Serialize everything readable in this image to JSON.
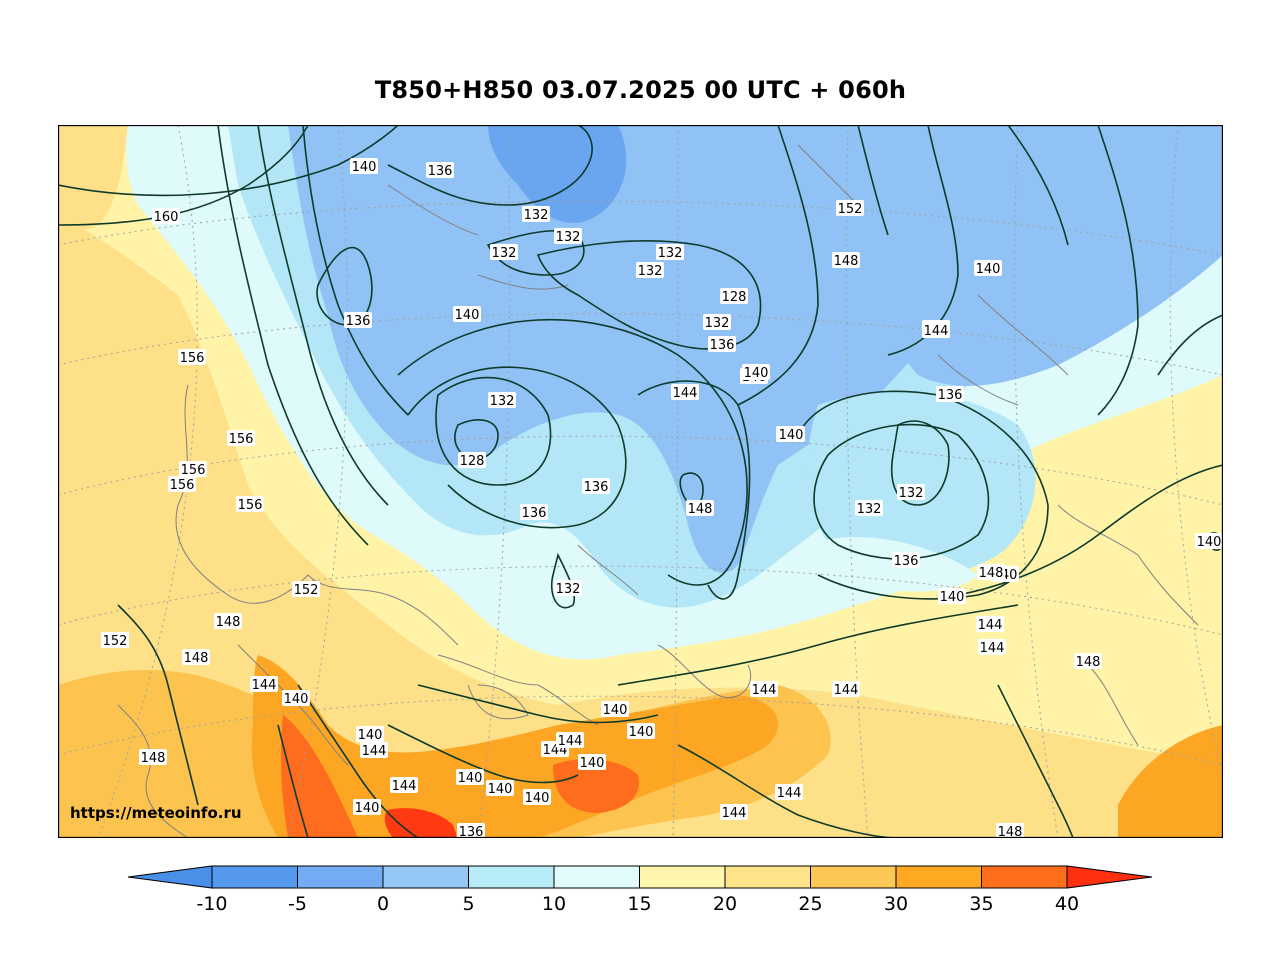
{
  "title": "T850+H850 03.07.2025 00 UTC + 060h",
  "watermark": "https://meteoinfo.ru",
  "colorbar": {
    "ticks": [
      "-10",
      "-5",
      "0",
      "5",
      "10",
      "15",
      "20",
      "25",
      "30",
      "35",
      "40"
    ],
    "colors": [
      "#5599ee",
      "#73acf2",
      "#96c8f6",
      "#b5ecf6",
      "#e0fbfa",
      "#fff6ae",
      "#fee38a",
      "#fdc755",
      "#fea921",
      "#ff6e1c",
      "#ff3010"
    ],
    "below_color": "#4a8fe8",
    "above_color": "#ff3010"
  },
  "fill_colors": {
    "cold_core": "#6aa6ef",
    "cold": "#90c2f5",
    "cool": "#b3e6f7",
    "mild": "#dffafa",
    "warm": "#fff3a8",
    "warmer": "#fde088",
    "hot": "#fdc34f",
    "hotter": "#fca623",
    "very_hot": "#fe6c1e",
    "extreme": "#ff3a12",
    "contour": "#0f3b2a",
    "coast": "#808080",
    "grid": "#a0a0a0"
  },
  "contour_labels": [
    {
      "t": "140"
    },
    {
      "t": "136"
    },
    {
      "t": "132"
    },
    {
      "t": "132"
    },
    {
      "t": "132"
    },
    {
      "t": "132"
    },
    {
      "t": "132"
    },
    {
      "t": "128"
    },
    {
      "t": "132"
    },
    {
      "t": "136"
    },
    {
      "t": "136"
    },
    {
      "t": "140"
    },
    {
      "t": "140"
    },
    {
      "t": "140"
    },
    {
      "t": "132"
    },
    {
      "t": "128"
    },
    {
      "t": "136"
    },
    {
      "t": "136"
    },
    {
      "t": "144"
    },
    {
      "t": "148"
    },
    {
      "t": "132"
    },
    {
      "t": "140"
    },
    {
      "t": "140"
    },
    {
      "t": "136"
    },
    {
      "t": "132"
    },
    {
      "t": "132"
    },
    {
      "t": "136"
    },
    {
      "t": "140"
    },
    {
      "t": "140"
    },
    {
      "t": "144"
    },
    {
      "t": "144"
    },
    {
      "t": "148"
    },
    {
      "t": "152"
    },
    {
      "t": "148"
    },
    {
      "t": "140"
    },
    {
      "t": "144"
    },
    {
      "t": "160"
    },
    {
      "t": "156"
    },
    {
      "t": "156"
    },
    {
      "t": "156"
    },
    {
      "t": "156"
    },
    {
      "t": "156"
    },
    {
      "t": "152"
    },
    {
      "t": "152"
    },
    {
      "t": "148"
    },
    {
      "t": "148"
    },
    {
      "t": "144"
    },
    {
      "t": "140"
    },
    {
      "t": "140"
    },
    {
      "t": "140"
    },
    {
      "t": "144"
    },
    {
      "t": "144"
    },
    {
      "t": "144"
    },
    {
      "t": "144"
    },
    {
      "t": "144"
    },
    {
      "t": "144"
    },
    {
      "t": "140"
    },
    {
      "t": "140"
    },
    {
      "t": "140"
    },
    {
      "t": "140"
    },
    {
      "t": "140"
    },
    {
      "t": "136"
    },
    {
      "t": "140"
    },
    {
      "t": "144"
    },
    {
      "t": "144"
    },
    {
      "t": "148"
    },
    {
      "t": "148"
    },
    {
      "t": "144"
    },
    {
      "t": "140"
    },
    {
      "t": "148"
    }
  ]
}
